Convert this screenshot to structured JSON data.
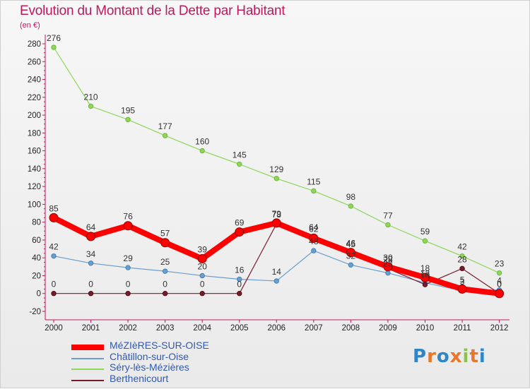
{
  "header": {
    "title": "Evolution du Montant de la Dette par Habitant",
    "unit": "(en €)"
  },
  "logo": {
    "text": "Proxiti"
  },
  "chart_data": {
    "type": "line",
    "title": "Evolution du Montant de la Dette par Habitant",
    "ylabel": "(en €)",
    "xlabel": "",
    "ylim": [
      -20,
      280
    ],
    "yticks": [
      -20,
      0,
      20,
      40,
      60,
      80,
      100,
      120,
      140,
      160,
      180,
      200,
      220,
      240,
      260,
      280
    ],
    "categories": [
      "2000",
      "2001",
      "2002",
      "2003",
      "2004",
      "2005",
      "2006",
      "2007",
      "2008",
      "2009",
      "2010",
      "2011",
      "2012"
    ],
    "legend_position": "bottom-left",
    "grid": false,
    "series": [
      {
        "name": "MéZIèRES-SUR-OISE",
        "color": "#ff0000",
        "values": [
          85,
          64,
          76,
          57,
          39,
          69,
          79,
          62,
          46,
          30,
          18,
          5,
          0
        ],
        "labels": [
          "85",
          "64",
          "76",
          "57",
          "39",
          "69",
          "79",
          "62",
          "46",
          "30",
          "18",
          "5",
          "0"
        ]
      },
      {
        "name": "Châtillon-sur-Oise",
        "color": "#6a9fd0",
        "values": [
          42,
          34,
          29,
          25,
          20,
          16,
          14,
          48,
          32,
          23,
          12,
          3,
          4
        ],
        "labels": [
          "42",
          "34",
          "29",
          "25",
          "20",
          "16",
          "14",
          "48",
          "32",
          "23",
          "12",
          "3",
          "4"
        ]
      },
      {
        "name": "Séry-lès-Mézières",
        "color": "#8fd65a",
        "values": [
          276,
          210,
          195,
          177,
          160,
          145,
          129,
          115,
          98,
          77,
          59,
          42,
          23
        ],
        "labels": [
          "276",
          "210",
          "195",
          "177",
          "160",
          "145",
          "129",
          "115",
          "98",
          "77",
          "59",
          "42",
          "23"
        ]
      },
      {
        "name": "Berthenicourt",
        "color": "#7a1b2b",
        "values": [
          0,
          0,
          0,
          0,
          0,
          0,
          78,
          64,
          45,
          28,
          10,
          28,
          0
        ],
        "labels": [
          "0",
          "0",
          "0",
          "0",
          "0",
          "0",
          "78",
          "64",
          "45",
          "28",
          "10",
          "28",
          "0"
        ]
      }
    ]
  }
}
